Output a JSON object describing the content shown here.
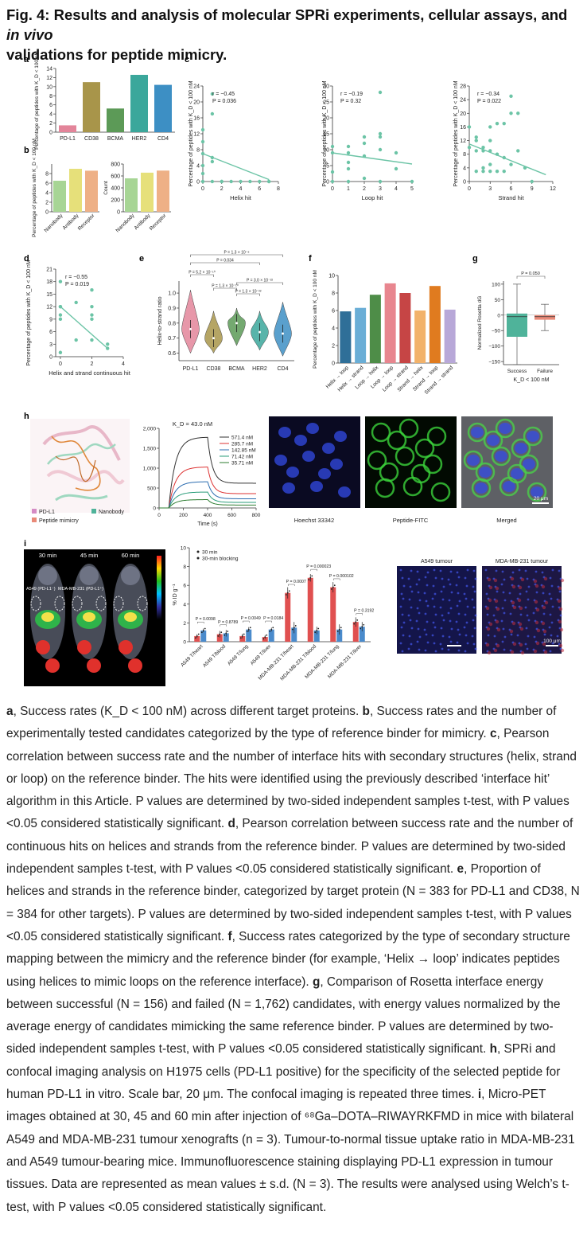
{
  "title": {
    "prefix": "Fig. 4: ",
    "main": "Results and analysis of molecular SPRi experiments, cellular assays, and ",
    "italic": "in vivo",
    "line2": "validations for peptide mimicry."
  },
  "colors": {
    "pdl1": "#e3859a",
    "cd38": "#a8954a",
    "bcma": "#5c9a57",
    "her2": "#3ba79b",
    "cd4": "#3d8fc4",
    "scatter": "#6cc4a6",
    "sig_red": "#d33",
    "bar_red": "#e05050",
    "bar_blue": "#4a8bcc"
  },
  "panel_labels": [
    "a",
    "b",
    "c",
    "d",
    "e",
    "f",
    "g",
    "h",
    "i"
  ],
  "chart_data": [
    {
      "id": "a",
      "type": "bar",
      "categories": [
        "PD-L1",
        "CD38",
        "BCMA",
        "HER2",
        "CD4"
      ],
      "values": [
        1.5,
        11,
        5.2,
        12.6,
        10.4
      ],
      "ylabel": "Percentage of peptides with K_D < 100 nM",
      "yticks": [
        "0",
        "2",
        "4",
        "6",
        "8",
        "10",
        "12",
        "14"
      ],
      "ylim": [
        0,
        14
      ]
    },
    {
      "id": "b1",
      "type": "bar",
      "categories": [
        "Nanobody",
        "Antibody",
        "Receptor"
      ],
      "values": [
        6.5,
        9,
        8.6
      ],
      "ylabel": "Percentage of peptides with K_D < 100 nM",
      "yticks": [
        "0",
        "2",
        "4",
        "6",
        "8"
      ],
      "ylim": [
        0,
        10
      ]
    },
    {
      "id": "b2",
      "type": "bar",
      "categories": [
        "Nanobody",
        "Antibody",
        "Receptor"
      ],
      "values": [
        560,
        655,
        690
      ],
      "ylabel": "Count",
      "yticks": [
        "0",
        "200",
        "400",
        "600",
        "800"
      ],
      "ylim": [
        0,
        800
      ]
    },
    {
      "id": "c1",
      "type": "scatter",
      "xlabel": "Helix hit",
      "ylabel": "Percentage of peptides with K_D < 100 nM",
      "stats": [
        "r = −0.45",
        "P = 0.036"
      ],
      "xticks": [
        "0",
        "2",
        "4",
        "6",
        "8"
      ],
      "yticks": [
        "0",
        "4",
        "8",
        "12",
        "16",
        "20",
        "24"
      ],
      "xlim": [
        0,
        8
      ],
      "ylim": [
        0,
        24
      ],
      "x": [
        0,
        0,
        0,
        0,
        0,
        0,
        1,
        1,
        1,
        1,
        1,
        2,
        2,
        3,
        4,
        5,
        6,
        7,
        7
      ],
      "y": [
        13,
        10,
        7,
        4,
        2,
        0,
        17,
        22,
        6,
        5,
        0,
        0,
        0,
        0,
        0,
        0,
        0,
        0,
        0
      ],
      "fit": [
        [
          0,
          7
        ],
        [
          7,
          0.5
        ]
      ]
    },
    {
      "id": "c2",
      "type": "scatter",
      "xlabel": "Loop hit",
      "ylabel": "Percentage of peptides with K_D < 100 nM",
      "stats": [
        "r = −0.19",
        "P = 0.32"
      ],
      "xticks": [
        "0",
        "1",
        "2",
        "3",
        "4",
        "5"
      ],
      "yticks": [
        "0",
        "5",
        "10",
        "15",
        "20",
        "25",
        "30"
      ],
      "xlim": [
        0,
        5
      ],
      "ylim": [
        0,
        30
      ],
      "x": [
        0,
        0,
        0,
        0,
        1,
        1,
        1,
        1,
        1,
        2,
        2,
        2,
        2,
        3,
        3,
        3,
        3,
        3,
        4,
        4,
        5
      ],
      "y": [
        11,
        9,
        3,
        0,
        11,
        9,
        6,
        4,
        0,
        14,
        12,
        8,
        1,
        28,
        15,
        14,
        10,
        0,
        9,
        4,
        0
      ],
      "fit": [
        [
          0,
          9
        ],
        [
          5,
          5.5
        ]
      ]
    },
    {
      "id": "c3",
      "type": "scatter",
      "xlabel": "Strand hit",
      "ylabel": "Percentage of peptides with K_D < 100 nM",
      "stats": [
        "r = −0.34",
        "P = 0.022"
      ],
      "xticks": [
        "0",
        "3",
        "6",
        "9",
        "12"
      ],
      "yticks": [
        "0",
        "4",
        "8",
        "12",
        "16",
        "20",
        "24",
        "28"
      ],
      "xlim": [
        0,
        12
      ],
      "ylim": [
        0,
        28
      ],
      "x": [
        0,
        0,
        1,
        1,
        1,
        1,
        2,
        2,
        2,
        2,
        3,
        3,
        3,
        3,
        3,
        4,
        4,
        4,
        5,
        5,
        5,
        6,
        6,
        6,
        7,
        7,
        8,
        9
      ],
      "y": [
        16,
        10,
        13,
        9,
        3,
        12,
        10,
        9,
        4,
        3,
        16,
        12,
        9,
        5,
        3,
        17,
        8,
        3,
        17,
        7,
        3,
        25,
        20,
        5,
        20,
        9,
        4,
        0
      ],
      "fit": [
        [
          0,
          11
        ],
        [
          11,
          2
        ]
      ]
    },
    {
      "id": "d",
      "type": "scatter",
      "xlabel": "Helix and strand continuous hit",
      "ylabel": "Percentage of peptides with K_D < 100 nM",
      "stats": [
        "r = −0.55",
        "P = 0.019"
      ],
      "xticks": [
        "0",
        "2",
        "4"
      ],
      "yticks": [
        "0",
        "3",
        "6",
        "9",
        "12",
        "15",
        "18",
        "21"
      ],
      "xlim": [
        -0.3,
        4
      ],
      "ylim": [
        0,
        21
      ],
      "x": [
        0,
        0,
        0,
        0,
        0,
        0,
        1,
        1,
        2,
        2,
        2,
        2,
        2,
        3,
        3
      ],
      "y": [
        18,
        12,
        12,
        10,
        9,
        1,
        13,
        4,
        16,
        10,
        9,
        12,
        4,
        3,
        2
      ],
      "fit": [
        [
          0,
          12
        ],
        [
          3,
          2
        ]
      ]
    },
    {
      "id": "e",
      "type": "violin",
      "categories": [
        "PD-L1",
        "CD38",
        "BCMA",
        "HER2",
        "CD4"
      ],
      "ylabel": "Helix-to-strand ratio",
      "yticks": [
        "0.6",
        "0.7",
        "0.8",
        "0.9",
        "1.0"
      ],
      "medians": [
        0.76,
        0.7,
        0.8,
        0.74,
        0.73
      ],
      "pvalues": [
        "P = 1.3 × 10⁻⁸",
        "P = 0.034",
        "P = 5.2 × 10⁻¹⁰",
        "P = 1.3 × 10⁻¹⁰",
        "P = 3.0 × 10⁻²²",
        "P = 1.3 × 10⁻²²"
      ]
    },
    {
      "id": "f",
      "type": "bar",
      "categories": [
        "Helix → loop",
        "Helix → strand",
        "Loop → helix",
        "Loop → loop",
        "Loop → strand",
        "Strand → helix",
        "Strand → loop",
        "Strand → strand"
      ],
      "values": [
        5.9,
        6.3,
        7.8,
        9.1,
        8.0,
        6.0,
        8.8,
        6.1
      ],
      "ylabel": "Percentage of peptides with K_D < 100 nM",
      "yticks": [
        "0",
        "2",
        "4",
        "6",
        "8",
        "10"
      ],
      "ylim": [
        0,
        10
      ]
    },
    {
      "id": "g",
      "type": "box",
      "categories": [
        "Success",
        "Failure"
      ],
      "xlabel": "K_D < 100 nM",
      "ylabel": "Normalized Rosetta dG",
      "yticks": [
        "−150",
        "−100",
        "−50",
        "0",
        "50",
        "100"
      ],
      "pvalue": "P = 0.050"
    },
    {
      "id": "h",
      "type": "line",
      "title": "K_D = 43.0 nM",
      "xlabel": "Time (s)",
      "xticks": [
        "0",
        "200",
        "400",
        "600",
        "800"
      ],
      "yticks": [
        "0",
        "500",
        "1,000",
        "1,500",
        "2,000"
      ],
      "series": [
        {
          "name": "571.4 nM",
          "peak": 1780
        },
        {
          "name": "285.7 nM",
          "peak": 1030
        },
        {
          "name": "142.85 nM",
          "peak": 660
        },
        {
          "name": "71.42 nM",
          "peak": 400
        },
        {
          "name": "35.71 nM",
          "peak": 210
        }
      ]
    },
    {
      "id": "i",
      "type": "bar",
      "ylabel": "% ID g⁻¹",
      "legend": [
        "30 min",
        "30-min blocking"
      ],
      "categories": [
        "A549 T/heart",
        "A549 T/blood",
        "A549 T/lung",
        "A549 T/liver",
        "MDA-MB-231 T/heart",
        "MDA-MB-231 T/blood",
        "MDA-MB-231 T/lung",
        "MDA-MB-231 T/liver"
      ],
      "series": [
        {
          "name": "30 min",
          "values": [
            0.6,
            0.8,
            0.6,
            0.5,
            5.2,
            6.8,
            5.8,
            2.1
          ]
        },
        {
          "name": "30-min blocking",
          "values": [
            1.2,
            0.9,
            1.3,
            1.3,
            1.5,
            1.2,
            1.3,
            1.6
          ]
        }
      ],
      "pvalues": [
        "P = 0.0098",
        "P = 0.8789",
        "P = 0.0049",
        "P = 0.0184",
        "P = 0.0007",
        "P = 0.000023",
        "P = 0.000102",
        "P = 0.3192"
      ],
      "yticks": [
        "0",
        "2",
        "4",
        "6",
        "8",
        "10"
      ],
      "ylim": [
        0,
        10
      ]
    }
  ],
  "panel_h": {
    "legend": [
      "PD-L1",
      "Nanobody",
      "Peptide mimicry"
    ],
    "images": [
      "Hoechst 33342",
      "Peptide-FITC",
      "Merged"
    ],
    "scale": "20 μm"
  },
  "panel_i": {
    "times": [
      "30 min",
      "45 min",
      "60 min"
    ],
    "labels": [
      "A549 (PD-L1⁻)",
      "MDA-MB-231 (PD-L1⁺)"
    ],
    "tissue": [
      "A549 tumour",
      "MDA-MB-231 tumour"
    ],
    "scale": "100 μm"
  },
  "caption": [
    {
      "b": "a",
      "t": ", Success rates (K_D < 100 nM) across different target proteins. "
    },
    {
      "b": "b",
      "t": ", Success rates and the number of experimentally tested candidates categorized by the type of reference binder for mimicry. "
    },
    {
      "b": "c",
      "t": ", Pearson correlation between success rate and the number of interface hits with secondary structures (helix, strand or loop) on the reference binder. The hits were identified using the previously described ‘interface hit’ algorithm in this Article. P values are determined by two-sided independent samples t-test, with P values <0.05 considered statistically significant. "
    },
    {
      "b": "d",
      "t": ", Pearson correlation between success rate and the number of continuous hits on helices and strands from the reference binder. P values are determined by two-sided independent samples t-test, with P values <0.05 considered statistically significant. "
    },
    {
      "b": "e",
      "t": ", Proportion of helices and strands in the reference binder, categorized by target protein (N = 383 for PD-L1 and CD38, N = 384 for other targets). P values are determined by two-sided independent samples t-test, with P values <0.05 considered statistically significant. "
    },
    {
      "b": "f",
      "t": ", Success rates categorized by the type of secondary structure mapping between the mimicry and the reference binder (for example, ‘Helix → loop’ indicates peptides using helices to mimic loops on the reference interface). "
    },
    {
      "b": "g",
      "t": ", Comparison of Rosetta interface energy between successful (N = 156) and failed (N = 1,762) candidates, with energy values normalized by the average energy of candidates mimicking the same reference binder. P values are determined by two-sided independent samples t-test, with P values <0.05 considered statistically significant. "
    },
    {
      "b": "h",
      "t": ", SPRi and confocal imaging analysis on H1975 cells (PD-L1 positive) for the specificity of the selected peptide for human PD-L1 in vitro. Scale bar, 20 μm. The confocal imaging is repeated three times. "
    },
    {
      "b": "i",
      "t": ", Micro-PET images obtained at 30, 45 and 60 min after injection of ⁶⁸Ga–DOTA–RIWAYRKFMD in mice with bilateral A549 and MDA-MB-231 tumour xenografts (n = 3). Tumour-to-normal tissue uptake ratio in MDA-MB-231 and A549 tumour-bearing mice. Immunofluorescence staining displaying PD-L1 expression in tumour tissues. Data are represented as mean values ± s.d. (N = 3). The results were analysed using Welch’s t-test, with P values <0.05 considered statistically significant."
    }
  ]
}
